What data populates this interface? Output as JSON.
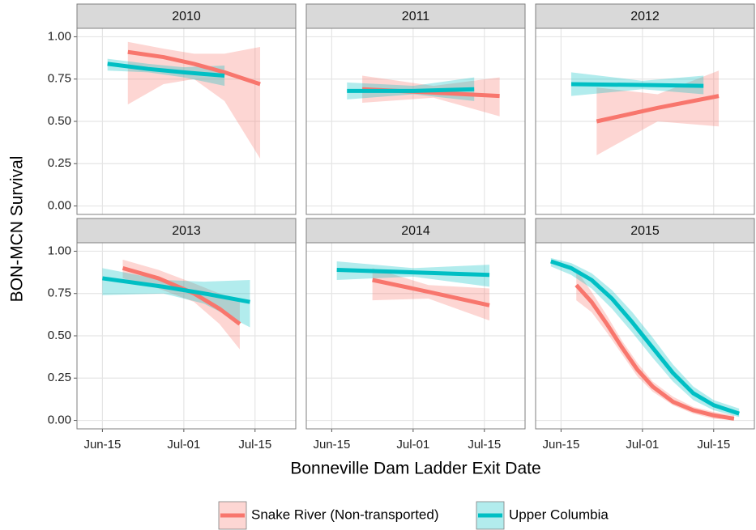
{
  "chart_data": {
    "type": "line",
    "y_label": "BON-MCN Survival",
    "x_label": "Bonneville Dam Ladder Exit Date",
    "xlim": [
      "Jun-10",
      "Jul-23"
    ],
    "xticks": [
      "Jun-15",
      "Jul-01",
      "Jul-15"
    ],
    "ylim": [
      -0.05,
      1.05
    ],
    "yticks": [
      {
        "value": 0,
        "label": "0.00"
      },
      0.25,
      {
        "value": 0.5,
        "label": "0.50"
      },
      0.75,
      {
        "value": 1,
        "label": "1.00"
      }
    ],
    "grid": true,
    "legend": [
      {
        "name": "Snake River (Non-transported)",
        "color": "#F8766D"
      },
      {
        "name": "Upper Columbia",
        "color": "#00BFC4"
      }
    ],
    "panels": [
      {
        "title": "2010",
        "series": [
          {
            "x": [
              "Jun-20",
              "Jun-27",
              "Jul-03",
              "Jul-09",
              "Jul-16"
            ],
            "values": [
              0.91,
              0.88,
              0.84,
              0.79,
              0.72
            ],
            "lower": [
              0.6,
              0.72,
              0.75,
              0.62,
              0.28
            ],
            "upper": [
              0.97,
              0.93,
              0.9,
              0.9,
              0.94
            ]
          },
          {
            "x": [
              "Jun-16",
              "Jun-24",
              "Jul-01",
              "Jul-09"
            ],
            "values": [
              0.84,
              0.81,
              0.79,
              0.77
            ],
            "lower": [
              0.8,
              0.79,
              0.76,
              0.71
            ],
            "upper": [
              0.87,
              0.84,
              0.82,
              0.83
            ]
          }
        ]
      },
      {
        "title": "2011",
        "series": [
          {
            "x": [
              "Jun-21",
              "Jul-05",
              "Jul-18"
            ],
            "values": [
              0.69,
              0.67,
              0.65
            ],
            "lower": [
              0.61,
              0.64,
              0.53
            ],
            "upper": [
              0.77,
              0.71,
              0.76
            ]
          },
          {
            "x": [
              "Jun-18",
              "Jul-01",
              "Jul-13"
            ],
            "values": [
              0.68,
              0.68,
              0.69
            ],
            "lower": [
              0.63,
              0.66,
              0.62
            ],
            "upper": [
              0.73,
              0.71,
              0.76
            ]
          }
        ]
      },
      {
        "title": "2012",
        "series": [
          {
            "x": [
              "Jun-22",
              "Jul-04",
              "Jul-16"
            ],
            "values": [
              0.5,
              0.58,
              0.65
            ],
            "lower": [
              0.3,
              0.5,
              0.47
            ],
            "upper": [
              0.7,
              0.66,
              0.8
            ]
          },
          {
            "x": [
              "Jun-17",
              "Jul-01",
              "Jul-13"
            ],
            "values": [
              0.72,
              0.715,
              0.71
            ],
            "lower": [
              0.65,
              0.69,
              0.66
            ],
            "upper": [
              0.79,
              0.74,
              0.77
            ]
          }
        ]
      },
      {
        "title": "2013",
        "series": [
          {
            "x": [
              "Jun-19",
              "Jun-26",
              "Jul-03",
              "Jul-08",
              "Jul-12"
            ],
            "values": [
              0.9,
              0.84,
              0.75,
              0.66,
              0.57
            ],
            "lower": [
              0.84,
              0.78,
              0.7,
              0.57,
              0.42
            ],
            "upper": [
              0.95,
              0.89,
              0.81,
              0.75,
              0.71
            ]
          },
          {
            "x": [
              "Jun-15",
              "Jun-27",
              "Jul-05",
              "Jul-14"
            ],
            "values": [
              0.84,
              0.79,
              0.75,
              0.7
            ],
            "lower": [
              0.74,
              0.75,
              0.69,
              0.55
            ],
            "upper": [
              0.9,
              0.83,
              0.82,
              0.83
            ]
          }
        ]
      },
      {
        "title": "2014",
        "series": [
          {
            "x": [
              "Jun-23",
              "Jul-04",
              "Jul-16"
            ],
            "values": [
              0.83,
              0.76,
              0.68
            ],
            "lower": [
              0.71,
              0.72,
              0.59
            ],
            "upper": [
              0.9,
              0.8,
              0.78
            ]
          },
          {
            "x": [
              "Jun-16",
              "Jul-01",
              "Jul-16"
            ],
            "values": [
              0.89,
              0.875,
              0.86
            ],
            "lower": [
              0.83,
              0.85,
              0.79
            ],
            "upper": [
              0.94,
              0.9,
              0.92
            ]
          }
        ]
      },
      {
        "title": "2015",
        "series": [
          {
            "x": [
              "Jun-18",
              "Jun-21",
              "Jun-24",
              "Jun-27",
              "Jun-30",
              "Jul-03",
              "Jul-07",
              "Jul-11",
              "Jul-15",
              "Jul-19"
            ],
            "values": [
              0.8,
              0.7,
              0.57,
              0.43,
              0.3,
              0.2,
              0.11,
              0.06,
              0.03,
              0.01
            ],
            "lower": [
              0.71,
              0.64,
              0.52,
              0.39,
              0.26,
              0.17,
              0.09,
              0.04,
              0.01,
              0
            ],
            "upper": [
              0.89,
              0.76,
              0.62,
              0.47,
              0.34,
              0.23,
              0.14,
              0.08,
              0.05,
              0.03
            ]
          },
          {
            "x": [
              "Jun-13",
              "Jun-17",
              "Jun-21",
              "Jun-25",
              "Jun-29",
              "Jul-03",
              "Jul-07",
              "Jul-11",
              "Jul-15",
              "Jul-20"
            ],
            "values": [
              0.94,
              0.9,
              0.83,
              0.72,
              0.58,
              0.43,
              0.28,
              0.16,
              0.09,
              0.04
            ],
            "lower": [
              0.91,
              0.86,
              0.78,
              0.66,
              0.52,
              0.37,
              0.23,
              0.12,
              0.06,
              0.02
            ],
            "upper": [
              0.96,
              0.93,
              0.87,
              0.77,
              0.64,
              0.49,
              0.33,
              0.2,
              0.12,
              0.07
            ]
          }
        ]
      }
    ]
  }
}
